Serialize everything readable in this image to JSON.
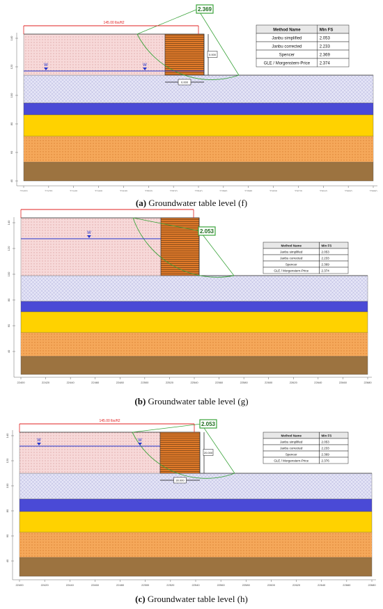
{
  "panels": [
    {
      "id": "f",
      "load_label": "145.00 lbs/ft2",
      "fs_box": "2.369",
      "dimension_width": "0.000",
      "dimension_height": "0.000",
      "table": {
        "headers": [
          "Method Name",
          "Min FS"
        ],
        "rows": [
          [
            "Janbu simplified",
            "2.053"
          ],
          [
            "Janbu corrected",
            "2.233"
          ],
          [
            "Spencer",
            "2.369"
          ],
          [
            "GLE / Morgenstern-Price",
            "2.374"
          ]
        ]
      },
      "x_ticks": [
        "22400",
        "22420",
        "22440",
        "22460",
        "22480",
        "22500",
        "22520",
        "22540",
        "22560",
        "22580",
        "22600",
        "22620",
        "22640",
        "22660",
        "22680"
      ],
      "y_ticks": [
        "140",
        "120",
        "100",
        "80",
        "60",
        "40"
      ],
      "water_symbol": "W",
      "caption_letter": "(a)",
      "caption_text": " Groundwater table level (f)"
    },
    {
      "id": "g",
      "load_label": "145.00 lbs/ft2",
      "fs_box": "2.053",
      "dimension_width": "",
      "dimension_height": "",
      "table": {
        "headers": [
          "Method Name",
          "Min FS"
        ],
        "rows": [
          [
            "Janbu simplified",
            "2.053"
          ],
          [
            "Janbu corrected",
            "2.233"
          ],
          [
            "Spencer",
            "2.369"
          ],
          [
            "GLE / Morgenstern-Price",
            "2.374"
          ]
        ]
      },
      "x_ticks": [
        "22400",
        "22420",
        "22440",
        "22460",
        "22480",
        "22500",
        "22520",
        "22540",
        "22560",
        "22580",
        "22600",
        "22620",
        "22640",
        "22660",
        "22680"
      ],
      "y_ticks": [
        "140",
        "120",
        "100",
        "80",
        "60",
        "40"
      ],
      "water_symbol": "W",
      "caption_letter": "(b)",
      "caption_text": " Groundwater table level (g)"
    },
    {
      "id": "h",
      "load_label": "145.00 lbs/ft2",
      "fs_box": "2.053",
      "dimension_width": "30.000",
      "dimension_height": "20.000",
      "table": {
        "headers": [
          "Method Name",
          "Min FS"
        ],
        "rows": [
          [
            "Janbu simplified",
            "2.053"
          ],
          [
            "Janbu corrected",
            "2.233"
          ],
          [
            "Spencer",
            "2.369"
          ],
          [
            "GLE / Morgenstern-Price",
            "2.376"
          ]
        ]
      },
      "x_ticks": [
        "22400",
        "22420",
        "22440",
        "22460",
        "22480",
        "22500",
        "22520",
        "22540",
        "22560",
        "22580",
        "22600",
        "22620",
        "22640",
        "22660",
        "22680"
      ],
      "y_ticks": [
        "140",
        "120",
        "100",
        "80",
        "60",
        "40"
      ],
      "water_symbol": "W",
      "caption_letter": "(c)",
      "caption_text": " Groundwater table level (h)"
    }
  ],
  "colors": {
    "embankment": "#f7d9d9",
    "slope_cut": "#e07a2a",
    "silty_layer": "#e4e4f6",
    "blue_layer": "#4a4ad6",
    "yellow_layer": "#ffd200",
    "orange_layer": "#f5a85a",
    "brown_layer": "#9c7340",
    "water_line": "#2233cc",
    "load_arrows": "#e02020",
    "slip_circle": "#3aa33a"
  }
}
